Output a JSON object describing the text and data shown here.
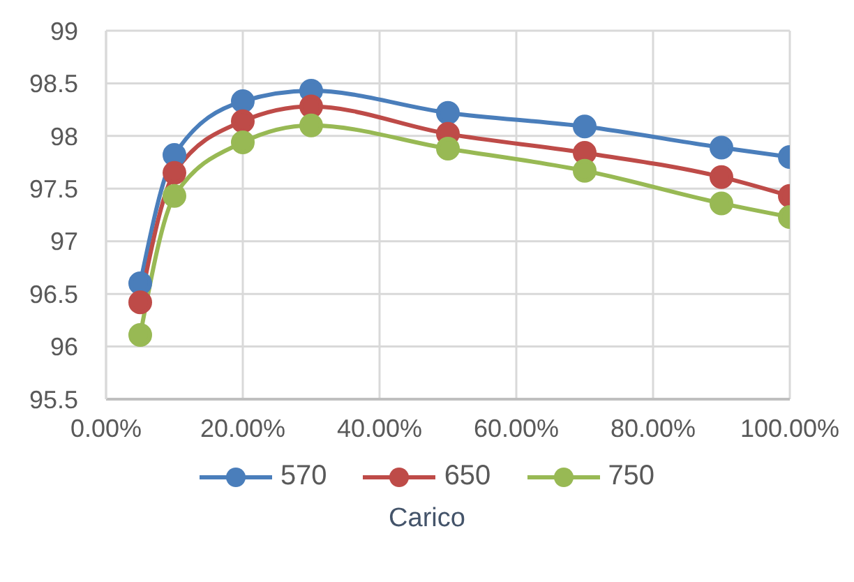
{
  "chart_data": {
    "type": "line",
    "xlabel": "Carico",
    "x": [
      0.05,
      0.1,
      0.2,
      0.3,
      0.5,
      0.7,
      0.9,
      1.0
    ],
    "series": [
      {
        "name": "570",
        "color": "#4a7ebb",
        "values": [
          96.6,
          97.82,
          98.33,
          98.43,
          98.22,
          98.09,
          97.89,
          97.8
        ]
      },
      {
        "name": "650",
        "color": "#be4b48",
        "values": [
          96.42,
          97.65,
          98.14,
          98.28,
          98.02,
          97.84,
          97.61,
          97.43
        ]
      },
      {
        "name": "750",
        "color": "#98b954",
        "values": [
          96.11,
          97.43,
          97.94,
          98.1,
          97.88,
          97.67,
          97.36,
          97.23
        ]
      }
    ],
    "xlim": [
      0,
      1
    ],
    "xticks": [
      {
        "value": 0,
        "label": "0.00%"
      },
      {
        "value": 0.2,
        "label": "20.00%"
      },
      {
        "value": 0.4,
        "label": "40.00%"
      },
      {
        "value": 0.6,
        "label": "60.00%"
      },
      {
        "value": 0.8,
        "label": "80.00%"
      },
      {
        "value": 1,
        "label": "100.00%"
      }
    ],
    "ylim": [
      95.5,
      99
    ],
    "yticks": [
      95.5,
      96,
      96.5,
      97,
      97.5,
      98,
      98.5,
      99
    ],
    "grid": true,
    "legend": "bottom",
    "marker": "circle",
    "line_style": "solid"
  }
}
